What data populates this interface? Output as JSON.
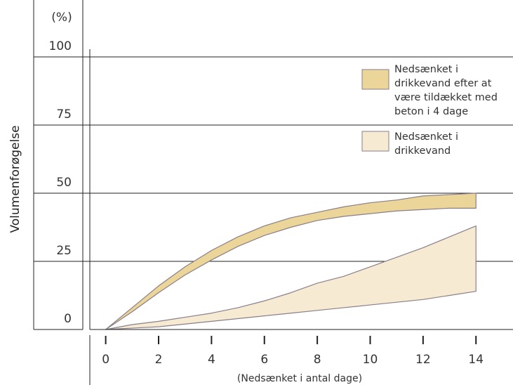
{
  "chart_data": {
    "type": "area",
    "y_unit_label": "(%)",
    "ylabel": "Volumenforøgelse",
    "xlabel": "(Nedsænket i antal dage)",
    "x_ticks": [
      0,
      2,
      4,
      6,
      8,
      10,
      12,
      14
    ],
    "y_ticks": [
      0,
      25,
      50,
      75,
      100
    ],
    "xlim": [
      -0.6,
      15.4
    ],
    "ylim": [
      0,
      100
    ],
    "grid": true,
    "legend_position": "top-right",
    "colors": {
      "band_covered": "#ecd598",
      "band_drinking": "#f7ead3",
      "band_stroke": "#8a7f8a",
      "grid": "#222222",
      "axis": "#222222"
    },
    "series": [
      {
        "name": "Nedsænket i drikkevand efter at være tildækket med beton i 4 dage",
        "x": [
          0,
          1,
          2,
          3,
          4,
          5,
          6,
          7,
          8,
          9,
          10,
          11,
          12,
          13,
          14
        ],
        "upper": [
          0,
          8,
          16,
          23,
          29,
          34,
          38,
          41,
          43,
          45,
          46.5,
          47.5,
          49,
          49.5,
          50
        ],
        "lower": [
          0,
          6.5,
          13.5,
          20,
          25.5,
          30.5,
          34.5,
          37.5,
          40,
          41.5,
          42.5,
          43.5,
          44,
          44.5,
          44.5
        ]
      },
      {
        "name": "Nedsænket i drikkevand",
        "x": [
          0,
          1,
          2,
          3,
          4,
          5,
          6,
          7,
          8,
          9,
          10,
          11,
          12,
          13,
          14
        ],
        "upper": [
          0,
          1.8,
          3,
          4.5,
          6,
          8,
          10.5,
          13.5,
          17,
          19.5,
          23,
          26.5,
          30,
          34,
          38
        ],
        "lower": [
          0,
          0.5,
          1,
          2,
          3,
          4,
          5,
          6,
          7,
          8,
          9,
          10,
          11,
          12.5,
          14
        ]
      }
    ]
  }
}
